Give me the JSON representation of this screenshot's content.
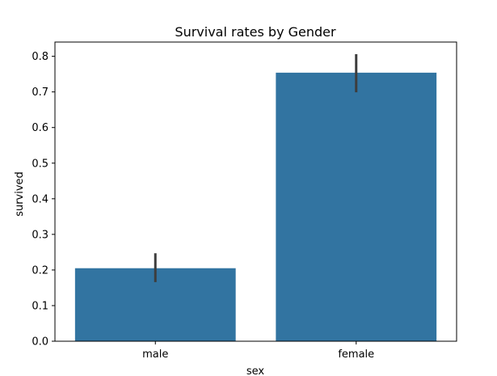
{
  "chart_data": {
    "type": "bar",
    "title": "Survival rates by Gender",
    "xlabel": "sex",
    "ylabel": "survived",
    "categories": [
      "male",
      "female"
    ],
    "values": [
      0.205,
      0.754
    ],
    "error_low": [
      0.166,
      0.699
    ],
    "error_high": [
      0.247,
      0.806
    ],
    "ylim": [
      0,
      0.84
    ],
    "yticks": [
      0.0,
      0.1,
      0.2,
      0.3,
      0.4,
      0.5,
      0.6,
      0.7,
      0.8
    ],
    "ytick_labels": [
      "0.0",
      "0.1",
      "0.2",
      "0.3",
      "0.4",
      "0.5",
      "0.6",
      "0.7",
      "0.8"
    ],
    "grid": false,
    "legend": "none",
    "colors": {
      "bar": "#3274a1",
      "errorbar": "#3d3d3d",
      "axis": "#000000"
    }
  }
}
